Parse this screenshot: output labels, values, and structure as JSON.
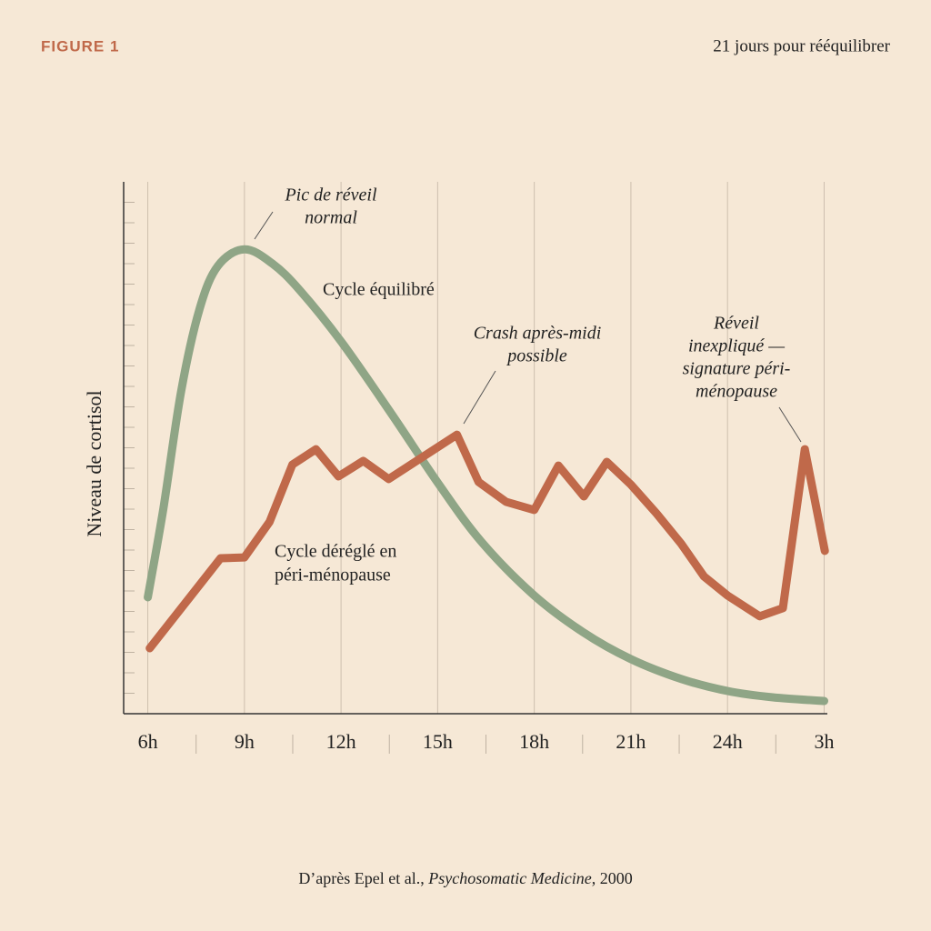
{
  "chart_data": {
    "type": "line",
    "figure_label": "FIGURE 1",
    "header_right": "21 jours pour rééquilibrer",
    "y_label": "Niveau de cortisol",
    "source": {
      "prefix": "D’après Epel et al., ",
      "journal": "Psychosomatic Medicine",
      "suffix": ", 2000"
    },
    "xlim": [
      5.25,
      27.1
    ],
    "xticks": [
      {
        "value": 6,
        "label": "6h"
      },
      {
        "value": 9,
        "label": "9h"
      },
      {
        "value": 12,
        "label": "12h"
      },
      {
        "value": 15,
        "label": "15h"
      },
      {
        "value": 18,
        "label": "18h"
      },
      {
        "value": 21,
        "label": "21h"
      },
      {
        "value": 24,
        "label": "24h"
      },
      {
        "value": 27,
        "label": "3h"
      }
    ],
    "ylim": [
      0,
      26
    ],
    "yticks": [
      1,
      2,
      3,
      4,
      5,
      6,
      7,
      8,
      9,
      10,
      11,
      12,
      13,
      14,
      15,
      16,
      17,
      18,
      19,
      20,
      21,
      22,
      23,
      24,
      25
    ],
    "grid": true,
    "series": [
      {
        "name_lines": [
          "Cycle équilibré"
        ],
        "color": "#8fa586",
        "smooth": true,
        "x": [
          6,
          6.48,
          7.04,
          7.61,
          8.18,
          9,
          9.87,
          10.72,
          12,
          13.55,
          15,
          16.36,
          18,
          19.5,
          21,
          22.58,
          24,
          25.41,
          27
        ],
        "values": [
          5.69,
          10.0,
          15.8,
          19.8,
          21.9,
          22.7,
          22.0,
          20.7,
          18.2,
          14.7,
          11.3,
          8.4,
          5.78,
          4.0,
          2.67,
          1.69,
          1.11,
          0.8,
          0.62
        ]
      },
      {
        "name_lines": [
          "Cycle déréglé en",
          "péri-ménopause"
        ],
        "color": "#c0694a",
        "smooth": false,
        "x": [
          6.06,
          8.26,
          9,
          9.78,
          10.49,
          11.22,
          11.92,
          12.69,
          13.48,
          15.6,
          16.27,
          17.12,
          18,
          18.75,
          19.54,
          20.25,
          21,
          21.8,
          22.56,
          23.27,
          24,
          25,
          25.72,
          26.4,
          27.02
        ],
        "values": [
          3.2,
          7.6,
          7.64,
          9.38,
          12.18,
          12.93,
          11.6,
          12.36,
          11.47,
          13.64,
          11.33,
          10.36,
          9.96,
          12.13,
          10.62,
          12.31,
          11.2,
          9.78,
          8.31,
          6.71,
          5.78,
          4.76,
          5.16,
          12.93,
          7.96
        ]
      }
    ],
    "annotations": [
      {
        "lines": [
          "Pic de réveil",
          "normal"
        ]
      },
      {
        "lines": [
          "Crash après-midi",
          "possible"
        ]
      },
      {
        "lines": [
          "Réveil",
          "inexpliqué —",
          "signature péri-",
          "ménopause"
        ]
      }
    ]
  }
}
